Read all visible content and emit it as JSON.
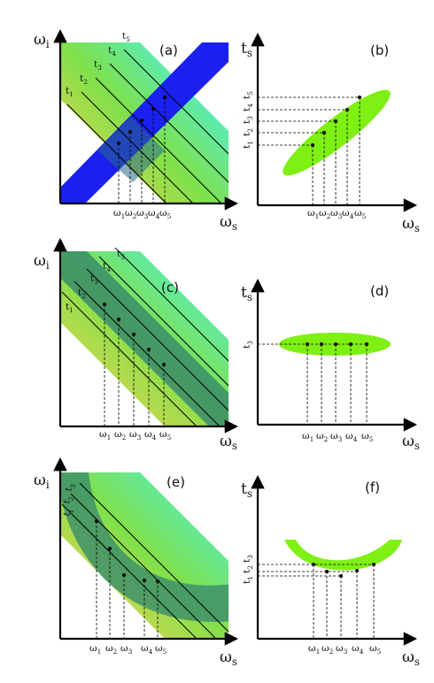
{
  "colors": {
    "grad_yellow": "#f2d352",
    "grad_green": "#7fe04a",
    "grad_cyan": "#4df0e0",
    "blue_band": "#1a20f0",
    "green_ellipse": "#7ff013",
    "dark_band": "#3a8c6a"
  },
  "panels": {
    "a": {
      "label": "(a)",
      "y_axis": "ω",
      "y_sub": "i",
      "x_axis": "ω",
      "x_sub": "s",
      "line_labels": [
        "t",
        "t",
        "t",
        "t",
        "t"
      ],
      "line_label_subs": [
        "1",
        "2",
        "3",
        "4",
        "5"
      ],
      "omega_labels": [
        "ω",
        "ω",
        "ω",
        "ω",
        "ω"
      ],
      "omega_subs": [
        "1",
        "2",
        "3",
        "4",
        "5"
      ]
    },
    "b": {
      "label": "(b)",
      "y_axis": "t",
      "y_sub": "s",
      "x_axis": "ω",
      "x_sub": "s",
      "t_labels": [
        "t",
        "t",
        "t",
        "t",
        "t"
      ],
      "t_subs": [
        "1",
        "2",
        "3",
        "4",
        "5"
      ],
      "omega_labels": [
        "ω",
        "ω",
        "ω",
        "ω",
        "ω"
      ],
      "omega_subs": [
        "1",
        "2",
        "3",
        "4",
        "5"
      ]
    },
    "c": {
      "label": "(c)",
      "y_axis": "ω",
      "y_sub": "i",
      "x_axis": "ω",
      "x_sub": "s",
      "line_labels": [
        "t",
        "t",
        "t",
        "t",
        "t"
      ],
      "line_label_subs": [
        "1",
        "2",
        "3",
        "4",
        "5"
      ],
      "omega_labels": [
        "ω",
        "ω",
        "ω",
        "ω",
        "ω"
      ],
      "omega_subs": [
        "1",
        "2",
        "3",
        "4",
        "5"
      ]
    },
    "d": {
      "label": "(d)",
      "y_axis": "t",
      "y_sub": "s",
      "x_axis": "ω",
      "x_sub": "s",
      "t_label": "t",
      "t_sub": "3",
      "omega_labels": [
        "ω",
        "ω",
        "ω",
        "ω",
        "ω"
      ],
      "omega_subs": [
        "1",
        "2",
        "3",
        "4",
        "5"
      ]
    },
    "e": {
      "label": "(e)",
      "y_axis": "ω",
      "y_sub": "i",
      "x_axis": "ω",
      "x_sub": "s",
      "line_labels": [
        "t",
        "t",
        "t"
      ],
      "line_label_subs": [
        "1",
        "2",
        "3"
      ],
      "omega_labels": [
        "ω",
        "ω",
        "ω",
        "ω",
        "ω"
      ],
      "omega_subs": [
        "1",
        "2",
        "3",
        "4",
        "5"
      ]
    },
    "f": {
      "label": "(f)",
      "y_axis": "t",
      "y_sub": "s",
      "x_axis": "ω",
      "x_sub": "s",
      "t_labels": [
        "t",
        "t",
        "t"
      ],
      "t_subs": [
        "1",
        "2",
        "3"
      ],
      "omega_labels": [
        "ω",
        "ω",
        "ω",
        "ω",
        "ω"
      ],
      "omega_subs": [
        "1",
        "2",
        "3",
        "4",
        "5"
      ]
    }
  }
}
